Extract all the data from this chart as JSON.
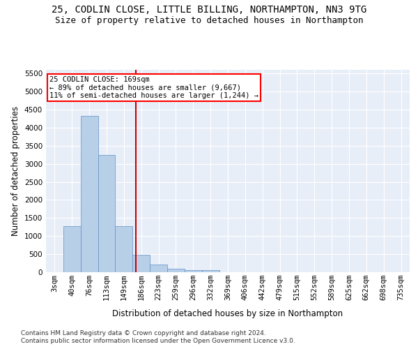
{
  "title_line1": "25, CODLIN CLOSE, LITTLE BILLING, NORTHAMPTON, NN3 9TG",
  "title_line2": "Size of property relative to detached houses in Northampton",
  "xlabel": "Distribution of detached houses by size in Northampton",
  "ylabel": "Number of detached properties",
  "footnote1": "Contains HM Land Registry data © Crown copyright and database right 2024.",
  "footnote2": "Contains public sector information licensed under the Open Government Licence v3.0.",
  "categories": [
    "3sqm",
    "40sqm",
    "76sqm",
    "113sqm",
    "149sqm",
    "186sqm",
    "223sqm",
    "259sqm",
    "296sqm",
    "332sqm",
    "369sqm",
    "406sqm",
    "442sqm",
    "479sqm",
    "515sqm",
    "552sqm",
    "589sqm",
    "625sqm",
    "662sqm",
    "698sqm",
    "735sqm"
  ],
  "values": [
    0,
    1270,
    4330,
    3250,
    1280,
    490,
    220,
    90,
    60,
    50,
    0,
    0,
    0,
    0,
    0,
    0,
    0,
    0,
    0,
    0,
    0
  ],
  "bar_color": "#b8cfe8",
  "bar_edge_color": "#6090c8",
  "vline_x_idx": 4.68,
  "vline_color": "#cc0000",
  "annotation_line1": "25 CODLIN CLOSE: 169sqm",
  "annotation_line2": "← 89% of detached houses are smaller (9,667)",
  "annotation_line3": "11% of semi-detached houses are larger (1,244) →",
  "ylim_max": 5600,
  "yticks": [
    0,
    500,
    1000,
    1500,
    2000,
    2500,
    3000,
    3500,
    4000,
    4500,
    5000,
    5500
  ],
  "bg_color": "#e8eef8",
  "grid_color": "#ffffff",
  "title_fontsize": 10,
  "subtitle_fontsize": 9,
  "axis_label_fontsize": 8.5,
  "tick_fontsize": 7.5,
  "footnote_fontsize": 6.5
}
